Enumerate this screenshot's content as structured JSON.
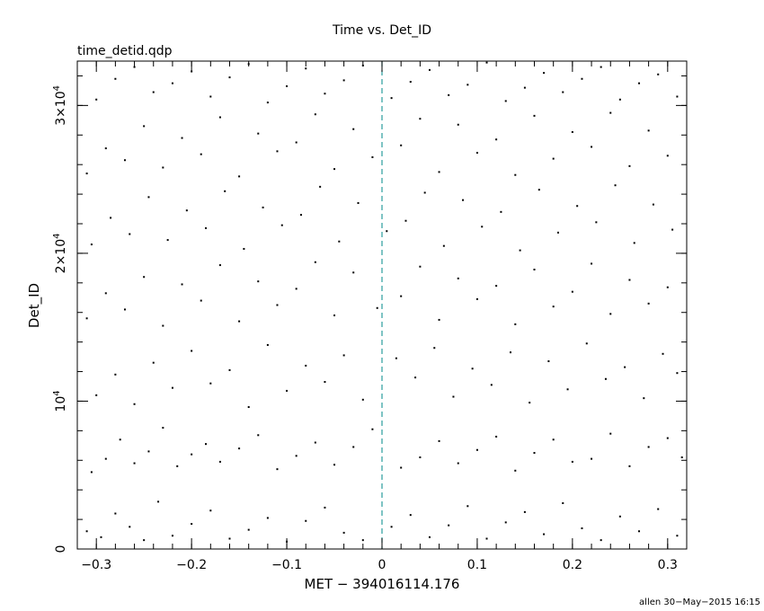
{
  "chart_data": {
    "type": "scatter",
    "title": "Time vs. Det_ID",
    "subtitle": "time_detid.qdp",
    "xlabel": "MET − 394016114.176",
    "ylabel": "Det_ID",
    "xlim": [
      -0.32,
      0.32
    ],
    "ylim": [
      0,
      33000
    ],
    "x_ticks": [
      {
        "value": -0.3,
        "label": "−0.3"
      },
      {
        "value": -0.2,
        "label": "−0.2"
      },
      {
        "value": -0.1,
        "label": "−0.1"
      },
      {
        "value": 0,
        "label": "0"
      },
      {
        "value": 0.1,
        "label": "0.1"
      },
      {
        "value": 0.2,
        "label": "0.2"
      },
      {
        "value": 0.3,
        "label": "0.3"
      }
    ],
    "y_ticks": [
      {
        "value": 0,
        "label": "0",
        "exp": ""
      },
      {
        "value": 10000,
        "label": "10",
        "exp": "4"
      },
      {
        "value": 20000,
        "label": "2×10",
        "exp": "4"
      },
      {
        "value": 30000,
        "label": "3×10",
        "exp": "4"
      }
    ],
    "reference_line": {
      "x": 0,
      "style": "dashed",
      "color": "#2a9d9d"
    },
    "point_color": "#000000",
    "grid": false,
    "series": [
      {
        "points": [
          [
            -0.31,
            1200
          ],
          [
            -0.295,
            800
          ],
          [
            -0.28,
            2400
          ],
          [
            -0.265,
            1500
          ],
          [
            -0.25,
            600
          ],
          [
            -0.235,
            3200
          ],
          [
            -0.22,
            900
          ],
          [
            -0.2,
            1700
          ],
          [
            -0.18,
            2600
          ],
          [
            -0.16,
            700
          ],
          [
            -0.14,
            1300
          ],
          [
            -0.12,
            2100
          ],
          [
            -0.1,
            500
          ],
          [
            -0.08,
            1900
          ],
          [
            -0.06,
            2800
          ],
          [
            -0.04,
            1100
          ],
          [
            -0.02,
            600
          ],
          [
            0.01,
            1500
          ],
          [
            0.03,
            2300
          ],
          [
            0.05,
            800
          ],
          [
            0.07,
            1600
          ],
          [
            0.09,
            2900
          ],
          [
            0.11,
            700
          ],
          [
            0.13,
            1800
          ],
          [
            0.15,
            2500
          ],
          [
            0.17,
            1000
          ],
          [
            0.19,
            3100
          ],
          [
            0.21,
            1400
          ],
          [
            0.23,
            600
          ],
          [
            0.25,
            2200
          ],
          [
            0.27,
            1200
          ],
          [
            0.29,
            2700
          ],
          [
            0.31,
            900
          ],
          [
            -0.305,
            5200
          ],
          [
            -0.29,
            6100
          ],
          [
            -0.275,
            7400
          ],
          [
            -0.26,
            5800
          ],
          [
            -0.245,
            6600
          ],
          [
            -0.23,
            8200
          ],
          [
            -0.215,
            5600
          ],
          [
            -0.2,
            6400
          ],
          [
            -0.185,
            7100
          ],
          [
            -0.17,
            5900
          ],
          [
            -0.15,
            6800
          ],
          [
            -0.13,
            7700
          ],
          [
            -0.11,
            5400
          ],
          [
            -0.09,
            6300
          ],
          [
            -0.07,
            7200
          ],
          [
            -0.05,
            5700
          ],
          [
            -0.03,
            6900
          ],
          [
            -0.01,
            8100
          ],
          [
            0.02,
            5500
          ],
          [
            0.04,
            6200
          ],
          [
            0.06,
            7300
          ],
          [
            0.08,
            5800
          ],
          [
            0.1,
            6700
          ],
          [
            0.12,
            7600
          ],
          [
            0.14,
            5300
          ],
          [
            0.16,
            6500
          ],
          [
            0.18,
            7400
          ],
          [
            0.2,
            5900
          ],
          [
            0.22,
            6100
          ],
          [
            0.24,
            7800
          ],
          [
            0.26,
            5600
          ],
          [
            0.28,
            6900
          ],
          [
            0.3,
            7500
          ],
          [
            0.315,
            6200
          ],
          [
            -0.3,
            10400
          ],
          [
            -0.28,
            11800
          ],
          [
            -0.26,
            9800
          ],
          [
            -0.24,
            12600
          ],
          [
            -0.22,
            10900
          ],
          [
            -0.2,
            13400
          ],
          [
            -0.18,
            11200
          ],
          [
            -0.16,
            12100
          ],
          [
            -0.14,
            9600
          ],
          [
            -0.12,
            13800
          ],
          [
            -0.1,
            10700
          ],
          [
            -0.08,
            12400
          ],
          [
            -0.06,
            11300
          ],
          [
            -0.04,
            13100
          ],
          [
            -0.02,
            10100
          ],
          [
            0.015,
            12900
          ],
          [
            0.035,
            11600
          ],
          [
            0.055,
            13600
          ],
          [
            0.075,
            10300
          ],
          [
            0.095,
            12200
          ],
          [
            0.115,
            11100
          ],
          [
            0.135,
            13300
          ],
          [
            0.155,
            9900
          ],
          [
            0.175,
            12700
          ],
          [
            0.195,
            10800
          ],
          [
            0.215,
            13900
          ],
          [
            0.235,
            11500
          ],
          [
            0.255,
            12300
          ],
          [
            0.275,
            10200
          ],
          [
            0.295,
            13200
          ],
          [
            0.31,
            11900
          ],
          [
            -0.31,
            15600
          ],
          [
            -0.29,
            17300
          ],
          [
            -0.27,
            16200
          ],
          [
            -0.25,
            18400
          ],
          [
            -0.23,
            15100
          ],
          [
            -0.21,
            17900
          ],
          [
            -0.19,
            16800
          ],
          [
            -0.17,
            19200
          ],
          [
            -0.15,
            15400
          ],
          [
            -0.13,
            18100
          ],
          [
            -0.11,
            16500
          ],
          [
            -0.09,
            17600
          ],
          [
            -0.07,
            19400
          ],
          [
            -0.05,
            15800
          ],
          [
            -0.03,
            18700
          ],
          [
            -0.005,
            16300
          ],
          [
            0.02,
            17100
          ],
          [
            0.04,
            19100
          ],
          [
            0.06,
            15500
          ],
          [
            0.08,
            18300
          ],
          [
            0.1,
            16900
          ],
          [
            0.12,
            17800
          ],
          [
            0.14,
            15200
          ],
          [
            0.16,
            18900
          ],
          [
            0.18,
            16400
          ],
          [
            0.2,
            17400
          ],
          [
            0.22,
            19300
          ],
          [
            0.24,
            15900
          ],
          [
            0.26,
            18200
          ],
          [
            0.28,
            16600
          ],
          [
            0.3,
            17700
          ],
          [
            -0.305,
            20600
          ],
          [
            -0.285,
            22400
          ],
          [
            -0.265,
            21300
          ],
          [
            -0.245,
            23800
          ],
          [
            -0.225,
            20900
          ],
          [
            -0.205,
            22900
          ],
          [
            -0.185,
            21700
          ],
          [
            -0.165,
            24200
          ],
          [
            -0.145,
            20300
          ],
          [
            -0.125,
            23100
          ],
          [
            -0.105,
            21900
          ],
          [
            -0.085,
            22600
          ],
          [
            -0.065,
            24500
          ],
          [
            -0.045,
            20800
          ],
          [
            -0.025,
            23400
          ],
          [
            0.005,
            21500
          ],
          [
            0.025,
            22200
          ],
          [
            0.045,
            24100
          ],
          [
            0.065,
            20500
          ],
          [
            0.085,
            23600
          ],
          [
            0.105,
            21800
          ],
          [
            0.125,
            22800
          ],
          [
            0.145,
            20200
          ],
          [
            0.165,
            24300
          ],
          [
            0.185,
            21400
          ],
          [
            0.205,
            23200
          ],
          [
            0.225,
            22100
          ],
          [
            0.245,
            24600
          ],
          [
            0.265,
            20700
          ],
          [
            0.285,
            23300
          ],
          [
            0.305,
            21600
          ],
          [
            -0.31,
            25400
          ],
          [
            -0.29,
            27100
          ],
          [
            -0.27,
            26300
          ],
          [
            -0.25,
            28600
          ],
          [
            -0.23,
            25800
          ],
          [
            -0.21,
            27800
          ],
          [
            -0.19,
            26700
          ],
          [
            -0.17,
            29200
          ],
          [
            -0.15,
            25200
          ],
          [
            -0.13,
            28100
          ],
          [
            -0.11,
            26900
          ],
          [
            -0.09,
            27500
          ],
          [
            -0.07,
            29400
          ],
          [
            -0.05,
            25700
          ],
          [
            -0.03,
            28400
          ],
          [
            -0.01,
            26500
          ],
          [
            0.02,
            27300
          ],
          [
            0.04,
            29100
          ],
          [
            0.06,
            25500
          ],
          [
            0.08,
            28700
          ],
          [
            0.1,
            26800
          ],
          [
            0.12,
            27700
          ],
          [
            0.14,
            25300
          ],
          [
            0.16,
            29300
          ],
          [
            0.18,
            26400
          ],
          [
            0.2,
            28200
          ],
          [
            0.22,
            27200
          ],
          [
            0.24,
            29500
          ],
          [
            0.26,
            25900
          ],
          [
            0.28,
            28300
          ],
          [
            0.3,
            26600
          ],
          [
            -0.3,
            30400
          ],
          [
            -0.28,
            31800
          ],
          [
            -0.26,
            32600
          ],
          [
            -0.24,
            30900
          ],
          [
            -0.22,
            31500
          ],
          [
            -0.2,
            32300
          ],
          [
            -0.18,
            30600
          ],
          [
            -0.16,
            31900
          ],
          [
            -0.14,
            32800
          ],
          [
            -0.12,
            30200
          ],
          [
            -0.1,
            31300
          ],
          [
            -0.08,
            32500
          ],
          [
            -0.06,
            30800
          ],
          [
            -0.04,
            31700
          ],
          [
            -0.02,
            32700
          ],
          [
            0.01,
            30500
          ],
          [
            0.03,
            31600
          ],
          [
            0.05,
            32400
          ],
          [
            0.07,
            30700
          ],
          [
            0.09,
            31400
          ],
          [
            0.11,
            32900
          ],
          [
            0.13,
            30300
          ],
          [
            0.15,
            31200
          ],
          [
            0.17,
            32200
          ],
          [
            0.19,
            30900
          ],
          [
            0.21,
            31800
          ],
          [
            0.23,
            32600
          ],
          [
            0.25,
            30400
          ],
          [
            0.27,
            31500
          ],
          [
            0.29,
            32100
          ],
          [
            0.31,
            30600
          ]
        ]
      }
    ]
  },
  "footer": {
    "stamp": "allen 30−May−2015 16:15"
  }
}
